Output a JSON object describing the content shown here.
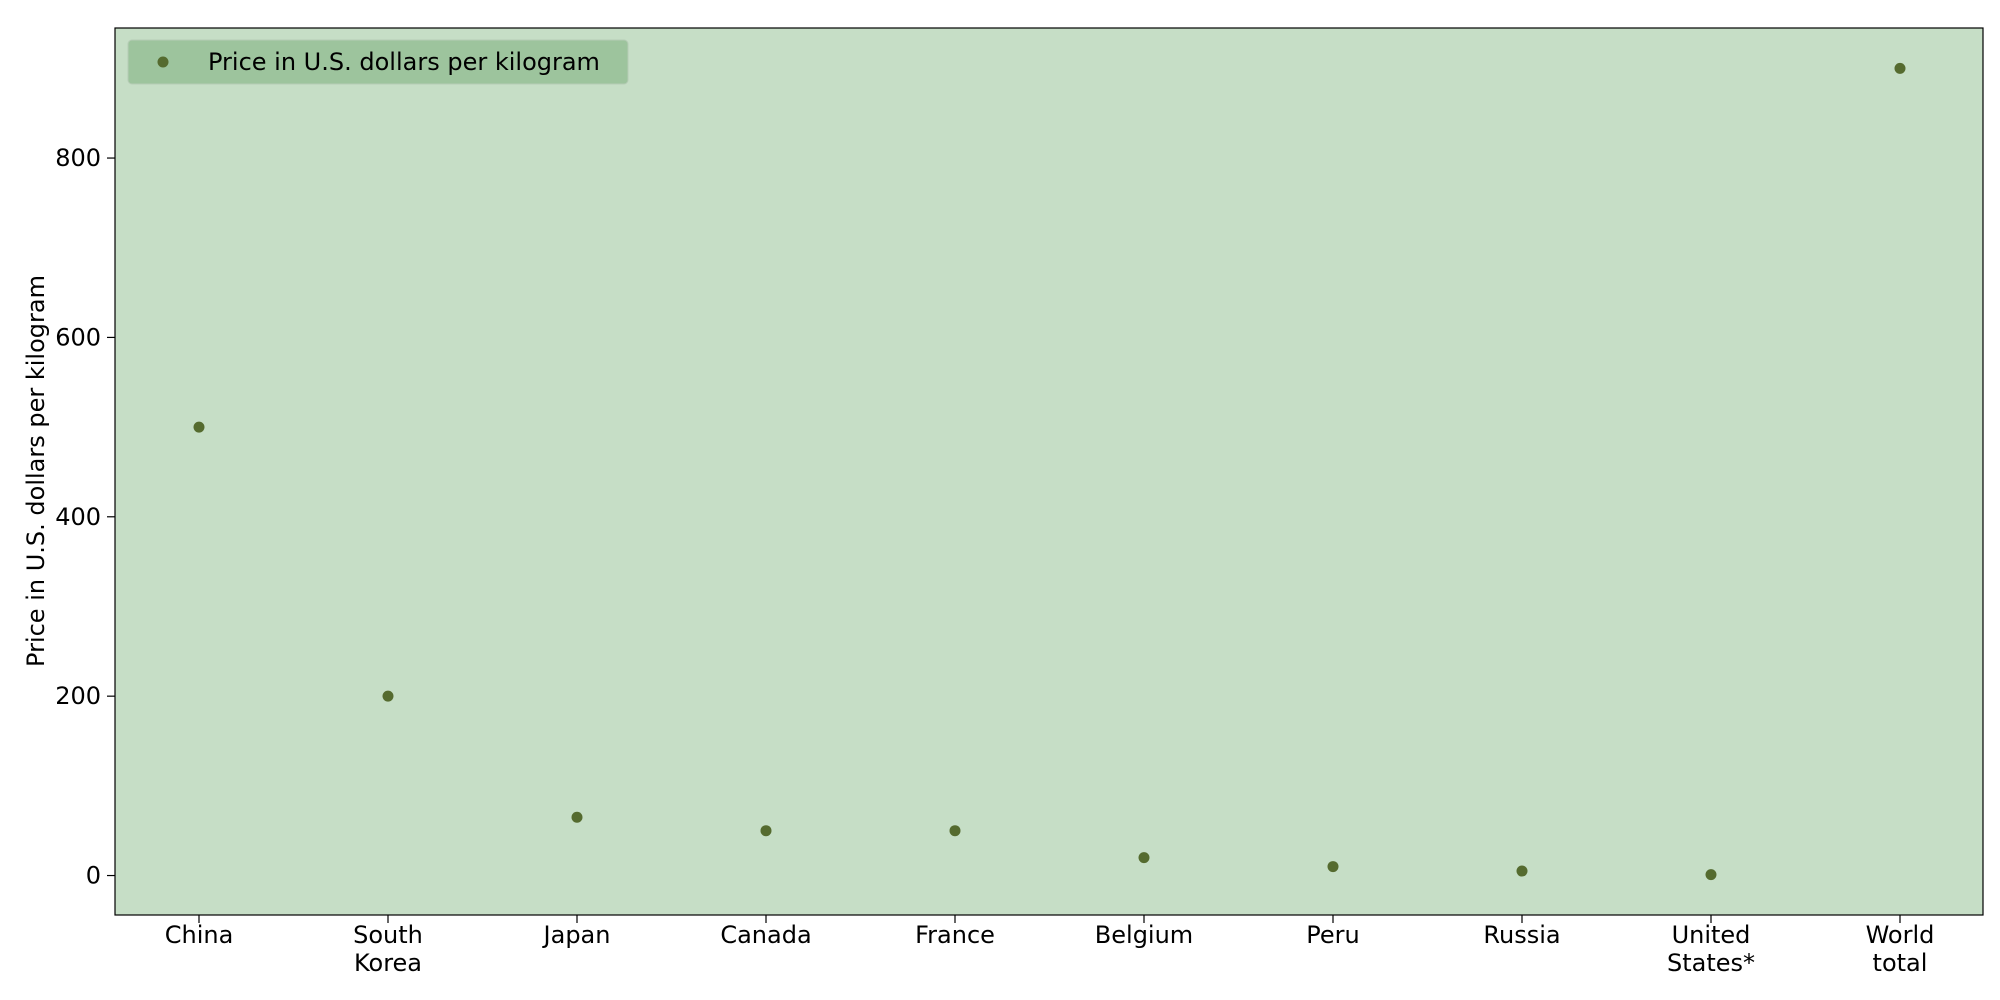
{
  "chart_data": {
    "type": "scatter",
    "title": "",
    "xlabel": "",
    "ylabel": "Price in U.S. dollars per kilogram",
    "categories": [
      [
        "China"
      ],
      [
        "South",
        "Korea"
      ],
      [
        "Japan"
      ],
      [
        "Canada"
      ],
      [
        "France"
      ],
      [
        "Belgium"
      ],
      [
        "Peru"
      ],
      [
        "Russia"
      ],
      [
        "United",
        "States*"
      ],
      [
        "World",
        "total"
      ]
    ],
    "series": [
      {
        "name": "Price in U.S. dollars per kilogram",
        "values": [
          500,
          200,
          65,
          50,
          50,
          20,
          10,
          5,
          1,
          900
        ],
        "color": "#556b2f"
      }
    ],
    "ylim": [
      -44,
      945
    ],
    "yticks": [
      "0",
      "200",
      "400",
      "600",
      "800"
    ],
    "grid": false,
    "legend_position": "top-left",
    "colors": {
      "plot_background": "#c6dec6",
      "legend_background": "#9dc49d",
      "marker": "#556b2f"
    }
  }
}
